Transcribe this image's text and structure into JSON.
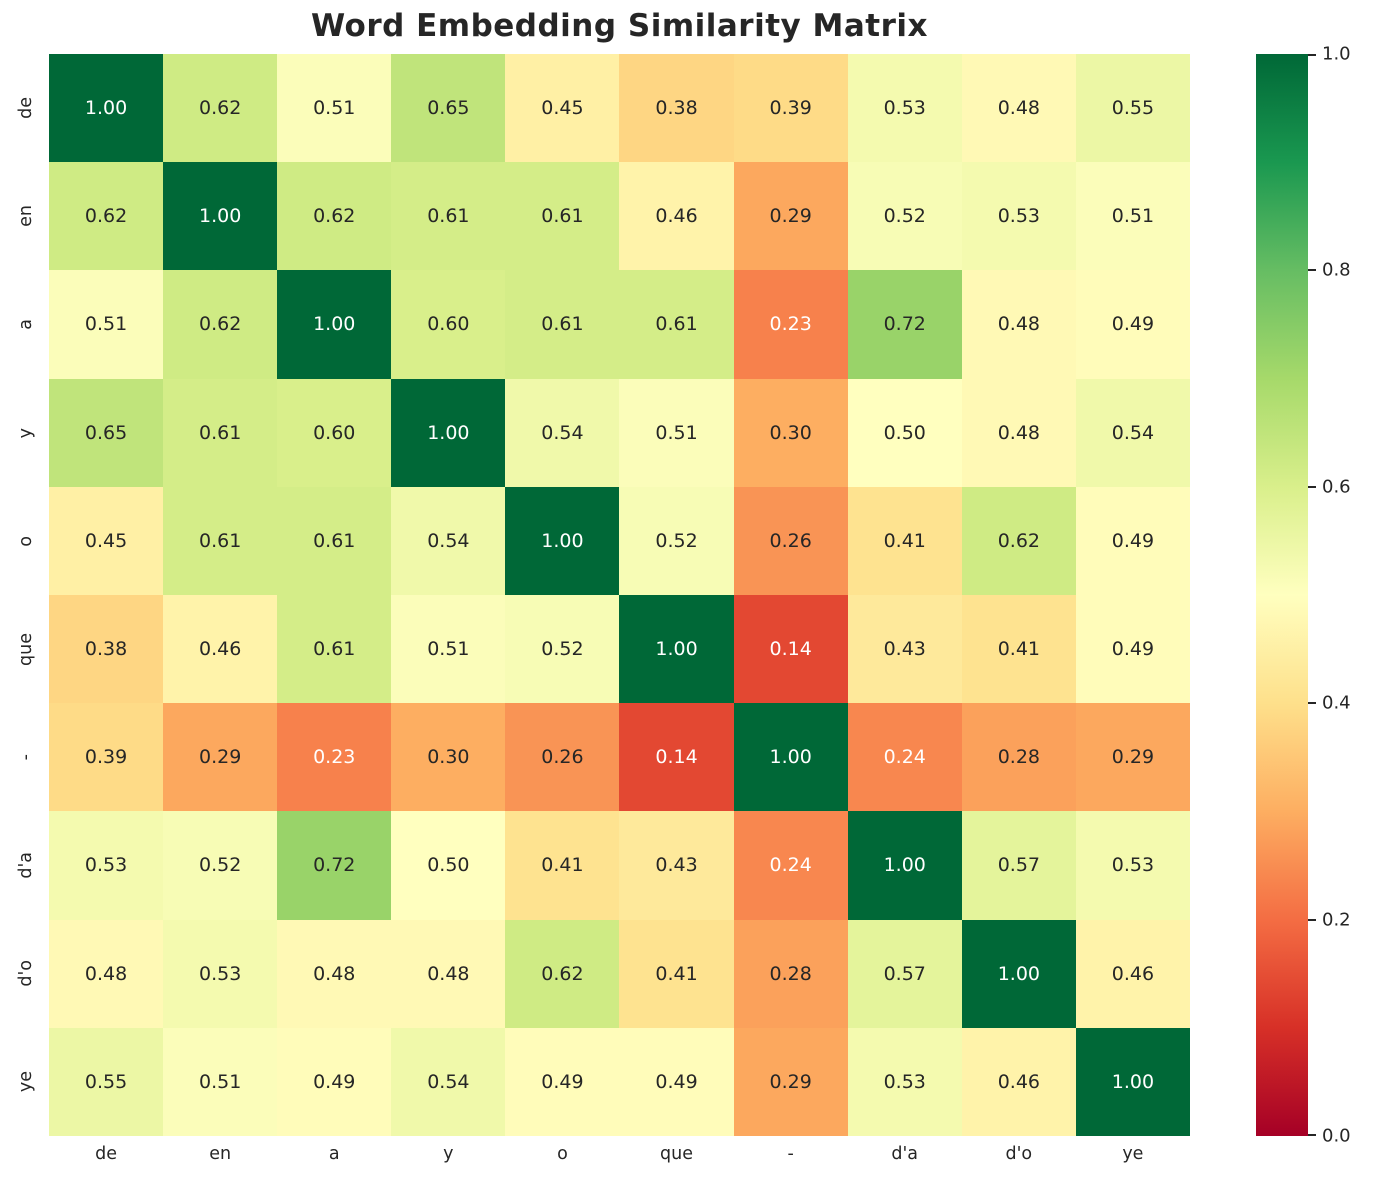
{
  "title": "Word Embedding Similarity Matrix",
  "colors": {
    "background": "#ffffff",
    "text": "#262626",
    "annot_dark": "#262626",
    "annot_light": "#ffffff"
  },
  "chart_data": {
    "type": "heatmap",
    "title": "Word Embedding Similarity Matrix",
    "x_tick_labels": [
      "de",
      "en",
      "a",
      "y",
      "o",
      "que",
      "-",
      "d'a",
      "d'o",
      "ye"
    ],
    "y_tick_labels": [
      "de",
      "en",
      "a",
      "y",
      "o",
      "que",
      "-",
      "d'a",
      "d'o",
      "ye"
    ],
    "matrix": [
      [
        1.0,
        0.62,
        0.51,
        0.65,
        0.45,
        0.38,
        0.39,
        0.53,
        0.48,
        0.55
      ],
      [
        0.62,
        1.0,
        0.62,
        0.61,
        0.61,
        0.46,
        0.29,
        0.52,
        0.53,
        0.51
      ],
      [
        0.51,
        0.62,
        1.0,
        0.6,
        0.61,
        0.61,
        0.23,
        0.72,
        0.48,
        0.49
      ],
      [
        0.65,
        0.61,
        0.6,
        1.0,
        0.54,
        0.51,
        0.3,
        0.5,
        0.48,
        0.54
      ],
      [
        0.45,
        0.61,
        0.61,
        0.54,
        1.0,
        0.52,
        0.26,
        0.41,
        0.62,
        0.49
      ],
      [
        0.38,
        0.46,
        0.61,
        0.51,
        0.52,
        1.0,
        0.14,
        0.43,
        0.41,
        0.49
      ],
      [
        0.39,
        0.29,
        0.23,
        0.3,
        0.26,
        0.14,
        1.0,
        0.24,
        0.28,
        0.29
      ],
      [
        0.53,
        0.52,
        0.72,
        0.5,
        0.41,
        0.43,
        0.24,
        1.0,
        0.57,
        0.53
      ],
      [
        0.48,
        0.53,
        0.48,
        0.48,
        0.62,
        0.41,
        0.28,
        0.57,
        1.0,
        0.46
      ],
      [
        0.55,
        0.51,
        0.49,
        0.54,
        0.49,
        0.49,
        0.29,
        0.53,
        0.46,
        1.0
      ]
    ],
    "annotation_decimals": 2,
    "colormap": "RdYlGn",
    "colormap_anchors": [
      "#a50026",
      "#d73027",
      "#f46d43",
      "#fdae61",
      "#fee08b",
      "#ffffbf",
      "#d9ef8b",
      "#a6d96a",
      "#66bd63",
      "#1a9850",
      "#006837"
    ],
    "value_range": [
      0.0,
      1.0
    ],
    "grid": false,
    "colorbar": {
      "position": "right",
      "min": 0.0,
      "max": 1.0,
      "tick_values": [
        1.0,
        0.8,
        0.6,
        0.4,
        0.2,
        0.0
      ],
      "tick_labels": [
        "1.0",
        "0.8",
        "0.6",
        "0.4",
        "0.2",
        "0.0"
      ]
    }
  }
}
